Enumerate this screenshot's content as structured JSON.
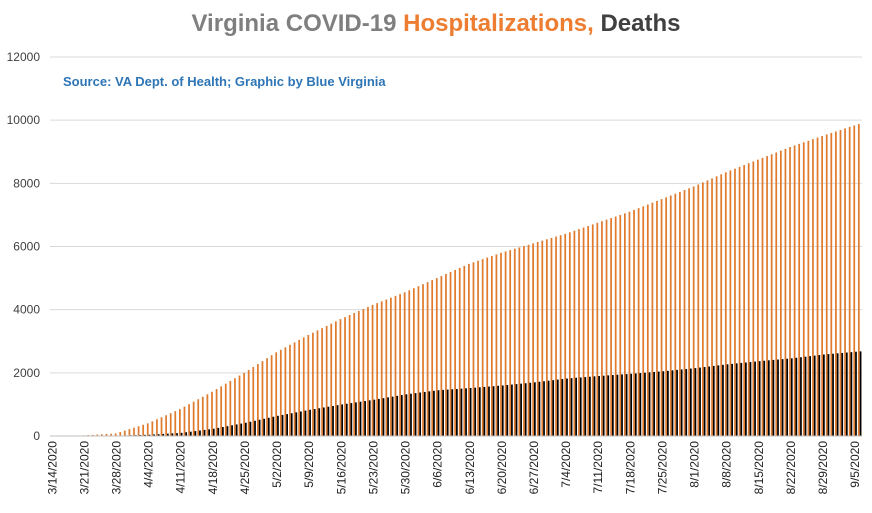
{
  "colors": {
    "background": "#ffffff",
    "grid": "#d9d9d9",
    "hospitalizations": "#e07b2e",
    "deaths": "#000000",
    "title_gray": "#7f7f7f",
    "title_orange": "#ed7d31",
    "title_dark": "#404040",
    "source": "#2e75b6",
    "axis_text": "#404040"
  },
  "chart_data": {
    "type": "bar",
    "title_parts": [
      {
        "text": "Virginia COVID-19 ",
        "color": "#7f7f7f"
      },
      {
        "text": "Hospitalizations,",
        "color": "#ed7d31"
      },
      {
        "text": " Deaths",
        "color": "#404040"
      }
    ],
    "subtitle": "Source: VA Dept. of Health; Graphic by Blue Virginia",
    "xlabel": "",
    "ylabel": "",
    "ylim": [
      0,
      12000
    ],
    "yticks": [
      0,
      2000,
      4000,
      6000,
      8000,
      10000,
      12000
    ],
    "grid": true,
    "legend": "none",
    "x_start": "2020-03-14",
    "x_end": "2020-09-06",
    "x_tick_labels": [
      "3/14/2020",
      "3/21/2020",
      "3/28/2020",
      "4/4/2020",
      "4/11/2020",
      "4/18/2020",
      "4/25/2020",
      "5/2/2020",
      "5/9/2020",
      "5/16/2020",
      "5/23/2020",
      "5/30/2020",
      "6/6/2020",
      "6/13/2020",
      "6/20/2020",
      "6/27/2020",
      "7/4/2020",
      "7/11/2020",
      "7/18/2020",
      "7/25/2020",
      "8/1/2020",
      "8/8/2020",
      "8/15/2020",
      "8/22/2020",
      "8/29/2020",
      "9/5/2020"
    ],
    "series": [
      {
        "name": "Hospitalizations",
        "color": "#e07b2e",
        "anchors": [
          [
            "2020-03-14",
            0
          ],
          [
            "2020-03-21",
            20
          ],
          [
            "2020-03-28",
            80
          ],
          [
            "2020-04-04",
            400
          ],
          [
            "2020-04-11",
            850
          ],
          [
            "2020-04-18",
            1400
          ],
          [
            "2020-04-25",
            2000
          ],
          [
            "2020-05-02",
            2650
          ],
          [
            "2020-05-09",
            3200
          ],
          [
            "2020-05-16",
            3700
          ],
          [
            "2020-05-23",
            4150
          ],
          [
            "2020-05-30",
            4550
          ],
          [
            "2020-06-06",
            5000
          ],
          [
            "2020-06-13",
            5450
          ],
          [
            "2020-06-20",
            5800
          ],
          [
            "2020-06-27",
            6100
          ],
          [
            "2020-07-04",
            6400
          ],
          [
            "2020-07-11",
            6750
          ],
          [
            "2020-07-18",
            7100
          ],
          [
            "2020-07-25",
            7500
          ],
          [
            "2020-08-01",
            7900
          ],
          [
            "2020-08-08",
            8350
          ],
          [
            "2020-08-15",
            8750
          ],
          [
            "2020-08-22",
            9150
          ],
          [
            "2020-08-29",
            9500
          ],
          [
            "2020-09-06",
            9880
          ]
        ]
      },
      {
        "name": "Deaths",
        "color": "#000000",
        "anchors": [
          [
            "2020-03-14",
            0
          ],
          [
            "2020-03-21",
            3
          ],
          [
            "2020-03-28",
            10
          ],
          [
            "2020-04-04",
            40
          ],
          [
            "2020-04-11",
            100
          ],
          [
            "2020-04-18",
            230
          ],
          [
            "2020-04-25",
            420
          ],
          [
            "2020-05-02",
            640
          ],
          [
            "2020-05-09",
            830
          ],
          [
            "2020-05-16",
            1000
          ],
          [
            "2020-05-23",
            1150
          ],
          [
            "2020-05-30",
            1320
          ],
          [
            "2020-06-06",
            1450
          ],
          [
            "2020-06-13",
            1520
          ],
          [
            "2020-06-20",
            1600
          ],
          [
            "2020-06-27",
            1700
          ],
          [
            "2020-07-04",
            1820
          ],
          [
            "2020-07-11",
            1900
          ],
          [
            "2020-07-18",
            1970
          ],
          [
            "2020-07-25",
            2050
          ],
          [
            "2020-08-01",
            2150
          ],
          [
            "2020-08-08",
            2270
          ],
          [
            "2020-08-15",
            2370
          ],
          [
            "2020-08-22",
            2460
          ],
          [
            "2020-08-29",
            2580
          ],
          [
            "2020-09-06",
            2680
          ]
        ]
      }
    ]
  }
}
